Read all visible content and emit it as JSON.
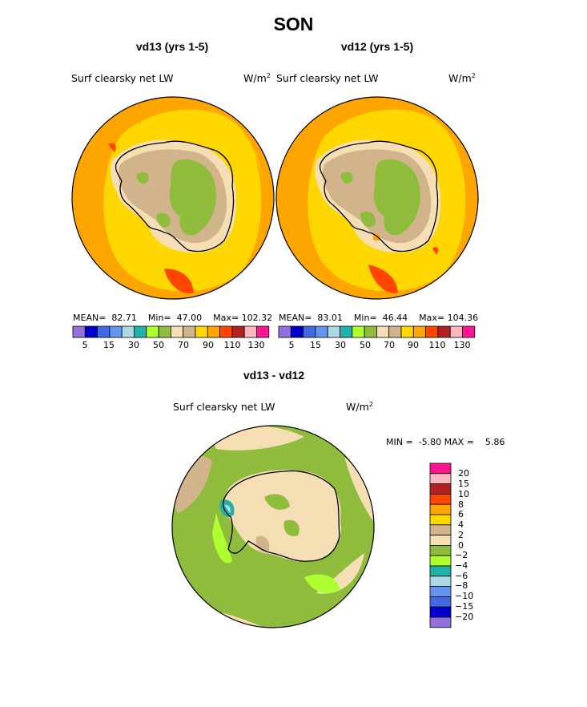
{
  "season": "SON",
  "colors": {
    "abs": [
      "#9370db",
      "#0000cd",
      "#4169e1",
      "#6495ed",
      "#add8e6",
      "#20b2aa",
      "#adff2f",
      "#8fbc3c",
      "#f5deb3",
      "#d2b48c",
      "#ffd700",
      "#ffa500",
      "#ff4500",
      "#b22222",
      "#ffb6c1",
      "#ff1493"
    ],
    "diff": [
      "#9370db",
      "#0000cd",
      "#4169e1",
      "#6495ed",
      "#add8e6",
      "#20b2aa",
      "#adff2f",
      "#8fbc3c",
      "#f5deb3",
      "#d2b48c",
      "#ffd700",
      "#ffa500",
      "#ff4500",
      "#b22222",
      "#ffb6c1",
      "#ff1493"
    ]
  },
  "chart_data": [
    {
      "type": "heatmap",
      "title": "vd13 (yrs 1-5)",
      "field": "Surf clearsky net LW",
      "units": "W/m",
      "units_exp": "2",
      "stats": {
        "mean_label": "MEAN=",
        "mean": "82.71",
        "min_label": "Min=",
        "min": "47.00",
        "max_label": "Max=",
        "max": "102.32"
      },
      "colorbar_ticks": [
        "5",
        "15",
        "30",
        "50",
        "70",
        "90",
        "110",
        "130"
      ]
    },
    {
      "type": "heatmap",
      "title": "vd12 (yrs 1-5)",
      "field": "Surf clearsky net LW",
      "units": "W/m",
      "units_exp": "2",
      "stats": {
        "mean_label": "MEAN=",
        "mean": "83.01",
        "min_label": "Min=",
        "min": "46.44",
        "max_label": "Max=",
        "max": "104.36"
      },
      "colorbar_ticks": [
        "5",
        "15",
        "30",
        "50",
        "70",
        "90",
        "110",
        "130"
      ]
    },
    {
      "type": "heatmap",
      "title": "vd13 - vd12",
      "field": "Surf clearsky net LW",
      "units": "W/m",
      "units_exp": "2",
      "stats": {
        "min_label": "MIN =",
        "min": "-5.80",
        "max_label": "MAX =",
        "max": "5.86"
      },
      "colorbar_ticks": [
        "20",
        "15",
        "10",
        "8",
        "6",
        "4",
        "2",
        "0",
        "−2",
        "−4",
        "−6",
        "−8",
        "−10",
        "−15",
        "−20"
      ]
    }
  ]
}
